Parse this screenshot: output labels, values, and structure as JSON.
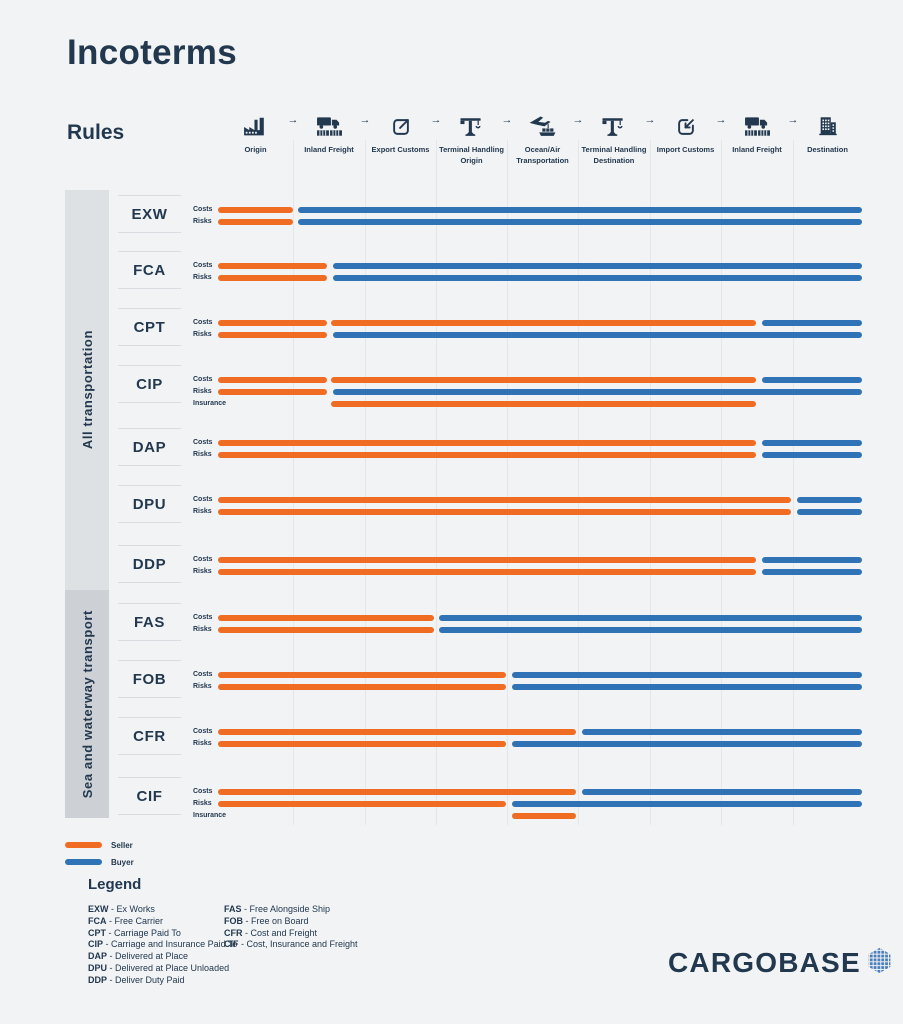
{
  "title": "Incoterms",
  "rules_heading": "Rules",
  "stage_arrow": "→",
  "colors": {
    "seller": "#f16c23",
    "buyer": "#2f72b6",
    "ink": "#22384e",
    "background": "#f2f3f5",
    "band_all": "#dee1e4",
    "band_sea": "#cdd0d4",
    "gridline": "#e4e6ea",
    "divider": "#d9dce1",
    "logo_blue": "#4a7dbd"
  },
  "stages": [
    {
      "label": "Origin",
      "icon": "factory-icon"
    },
    {
      "label": "Inland Freight",
      "icon": "truck-icon"
    },
    {
      "label": "Export Customs",
      "icon": "export-icon"
    },
    {
      "label": "Terminal Handling Origin",
      "icon": "crane-icon"
    },
    {
      "label": "Ocean/Air Transportation",
      "icon": "plane-ship-icon"
    },
    {
      "label": "Terminal Handling Destination",
      "icon": "crane-icon"
    },
    {
      "label": "Import Customs",
      "icon": "import-icon"
    },
    {
      "label": "Inland Freight",
      "icon": "truck-icon"
    },
    {
      "label": "Destination",
      "icon": "building-icon"
    }
  ],
  "groups": [
    {
      "label": "All transportation"
    },
    {
      "label": "Sea and waterway transport"
    }
  ],
  "bar_legend": [
    {
      "label": "Seller",
      "party": "seller"
    },
    {
      "label": "Buyer",
      "party": "buyer"
    }
  ],
  "legend": {
    "heading": "Legend",
    "separator": " - ",
    "columns": [
      [
        {
          "code": "EXW",
          "name": "Ex Works"
        },
        {
          "code": "FCA",
          "name": "Free Carrier"
        },
        {
          "code": "CPT",
          "name": "Carriage Paid To"
        },
        {
          "code": "CIP",
          "name": "Carriage and Insurance Paid To"
        },
        {
          "code": "DAP",
          "name": "Delivered at Place"
        },
        {
          "code": "DPU",
          "name": "Delivered at Place Unloaded"
        },
        {
          "code": "DDP",
          "name": "Deliver Duty Paid"
        }
      ],
      [
        {
          "code": "FAS",
          "name": "Free Alongside Ship"
        },
        {
          "code": "FOB",
          "name": "Free on Board"
        },
        {
          "code": "CFR",
          "name": "Cost and Freight"
        },
        {
          "code": "CIF",
          "name": "Cost, Insurance and Freight"
        }
      ]
    ]
  },
  "brand": {
    "name": "CARGOBASE"
  },
  "chart_data": {
    "type": "gantt",
    "unit": "fraction of timeline width (0 = Origin start, 1 = Destination end)",
    "stages": [
      "Origin",
      "Inland Freight",
      "Export Customs",
      "Terminal Handling Origin",
      "Ocean/Air Transportation",
      "Terminal Handling Destination",
      "Import Customs",
      "Inland Freight",
      "Destination"
    ],
    "stage_boundaries": [
      0,
      0.1165,
      0.2283,
      0.3385,
      0.4488,
      0.559,
      0.6708,
      0.7811,
      0.8929,
      1
    ],
    "parties": {
      "seller": "#f16c23",
      "buyer": "#2f72b6"
    },
    "rules": [
      {
        "code": "EXW",
        "group": 0,
        "rows": [
          {
            "label": "Costs",
            "segments": [
              [
                "seller",
                0,
                0.116
              ],
              [
                "buyer",
                0.124,
                1
              ]
            ]
          },
          {
            "label": "Risks",
            "segments": [
              [
                "seller",
                0,
                0.116
              ],
              [
                "buyer",
                0.124,
                1
              ]
            ]
          }
        ]
      },
      {
        "code": "FCA",
        "group": 0,
        "rows": [
          {
            "label": "Costs",
            "segments": [
              [
                "seller",
                0,
                0.169
              ],
              [
                "buyer",
                0.179,
                1
              ]
            ]
          },
          {
            "label": "Risks",
            "segments": [
              [
                "seller",
                0,
                0.169
              ],
              [
                "buyer",
                0.179,
                1
              ]
            ]
          }
        ]
      },
      {
        "code": "CPT",
        "group": 0,
        "rows": [
          {
            "label": "Costs",
            "segments": [
              [
                "seller",
                0,
                0.169
              ],
              [
                "seller",
                0.175,
                0.835
              ],
              [
                "buyer",
                0.845,
                1
              ]
            ]
          },
          {
            "label": "Risks",
            "segments": [
              [
                "seller",
                0,
                0.169
              ],
              [
                "buyer",
                0.179,
                1
              ]
            ]
          }
        ]
      },
      {
        "code": "CIP",
        "group": 0,
        "rows": [
          {
            "label": "Costs",
            "segments": [
              [
                "seller",
                0,
                0.169
              ],
              [
                "seller",
                0.175,
                0.835
              ],
              [
                "buyer",
                0.845,
                1
              ]
            ]
          },
          {
            "label": "Risks",
            "segments": [
              [
                "seller",
                0,
                0.169
              ],
              [
                "buyer",
                0.179,
                1
              ]
            ]
          },
          {
            "label": "Insurance",
            "segments": [
              [
                "seller",
                0.175,
                0.835
              ]
            ]
          }
        ]
      },
      {
        "code": "DAP",
        "group": 0,
        "rows": [
          {
            "label": "Costs",
            "segments": [
              [
                "seller",
                0,
                0.835
              ],
              [
                "buyer",
                0.845,
                1
              ]
            ]
          },
          {
            "label": "Risks",
            "segments": [
              [
                "seller",
                0,
                0.835
              ],
              [
                "buyer",
                0.845,
                1
              ]
            ]
          }
        ]
      },
      {
        "code": "DPU",
        "group": 0,
        "rows": [
          {
            "label": "Costs",
            "segments": [
              [
                "seller",
                0,
                0.89
              ],
              [
                "buyer",
                0.899,
                1
              ]
            ]
          },
          {
            "label": "Risks",
            "segments": [
              [
                "seller",
                0,
                0.89
              ],
              [
                "buyer",
                0.899,
                1
              ]
            ]
          }
        ]
      },
      {
        "code": "DDP",
        "group": 0,
        "rows": [
          {
            "label": "Costs",
            "segments": [
              [
                "seller",
                0,
                0.835
              ],
              [
                "buyer",
                0.845,
                1
              ]
            ]
          },
          {
            "label": "Risks",
            "segments": [
              [
                "seller",
                0,
                0.835
              ],
              [
                "buyer",
                0.845,
                1
              ]
            ]
          }
        ]
      },
      {
        "code": "FAS",
        "group": 1,
        "rows": [
          {
            "label": "Costs",
            "segments": [
              [
                "seller",
                0,
                0.335
              ],
              [
                "buyer",
                0.343,
                1
              ]
            ]
          },
          {
            "label": "Risks",
            "segments": [
              [
                "seller",
                0,
                0.335
              ],
              [
                "buyer",
                0.343,
                1
              ]
            ]
          }
        ]
      },
      {
        "code": "FOB",
        "group": 1,
        "rows": [
          {
            "label": "Costs",
            "segments": [
              [
                "seller",
                0,
                0.447
              ],
              [
                "buyer",
                0.457,
                1
              ]
            ]
          },
          {
            "label": "Risks",
            "segments": [
              [
                "seller",
                0,
                0.447
              ],
              [
                "buyer",
                0.457,
                1
              ]
            ]
          }
        ]
      },
      {
        "code": "CFR",
        "group": 1,
        "rows": [
          {
            "label": "Costs",
            "segments": [
              [
                "seller",
                0,
                0.556
              ],
              [
                "buyer",
                0.565,
                1
              ]
            ]
          },
          {
            "label": "Risks",
            "segments": [
              [
                "seller",
                0,
                0.447
              ],
              [
                "buyer",
                0.457,
                1
              ]
            ]
          }
        ]
      },
      {
        "code": "CIF",
        "group": 1,
        "rows": [
          {
            "label": "Costs",
            "segments": [
              [
                "seller",
                0,
                0.556
              ],
              [
                "buyer",
                0.565,
                1
              ]
            ]
          },
          {
            "label": "Risks",
            "segments": [
              [
                "seller",
                0,
                0.447
              ],
              [
                "buyer",
                0.457,
                1
              ]
            ]
          },
          {
            "label": "Insurance",
            "segments": [
              [
                "seller",
                0.457,
                0.556
              ]
            ]
          }
        ]
      }
    ]
  }
}
